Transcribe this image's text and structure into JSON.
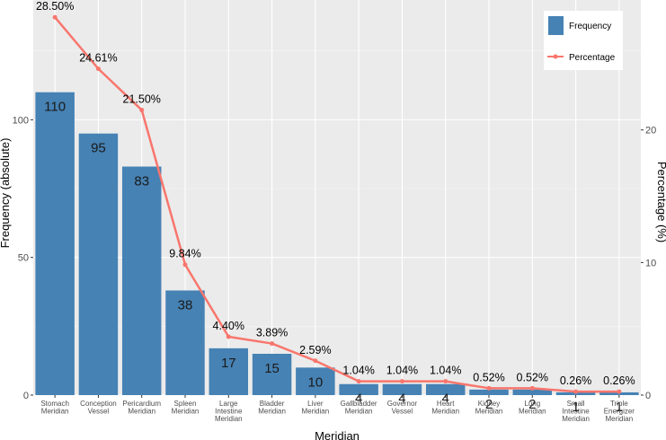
{
  "chart_data": {
    "type": "bar",
    "categories": [
      [
        "Stomach",
        "Meridian"
      ],
      [
        "Conception",
        "Vessel"
      ],
      [
        "Pericardium",
        "Meridian"
      ],
      [
        "Spleen",
        "Meridian"
      ],
      [
        "Large",
        "Intestine",
        "Meridian"
      ],
      [
        "Bladder",
        "Meridian"
      ],
      [
        "Liver",
        "Meridian"
      ],
      [
        "Gallbladder",
        "Meridian"
      ],
      [
        "Governor",
        "Vessel"
      ],
      [
        "Heart",
        "Meridian"
      ],
      [
        "Kidney",
        "Meridian"
      ],
      [
        "Lung",
        "Meridian"
      ],
      [
        "Small",
        "Intestine",
        "Meridian"
      ],
      [
        "Triple",
        "Energizer",
        "Meridian"
      ]
    ],
    "series": [
      {
        "name": "Frequency",
        "kind": "bar",
        "axis": "left",
        "color": "#4682b4",
        "values": [
          110,
          95,
          83,
          38,
          17,
          15,
          10,
          4,
          4,
          4,
          2,
          2,
          1,
          1
        ],
        "labels": [
          "110",
          "95",
          "83",
          "38",
          "17",
          "15",
          "10",
          "4",
          "4",
          "4",
          "2",
          "2",
          "1",
          "1"
        ]
      },
      {
        "name": "Percentage",
        "kind": "line",
        "axis": "right",
        "color": "#f8766d",
        "values": [
          28.5,
          24.61,
          21.5,
          9.84,
          4.4,
          3.89,
          2.59,
          1.04,
          1.04,
          1.04,
          0.52,
          0.52,
          0.26,
          0.26
        ],
        "labels": [
          "28.50%",
          "24.61%",
          "21.50%",
          "9.84%",
          "4.40%",
          "3.89%",
          "2.59%",
          "1.04%",
          "1.04%",
          "1.04%",
          "0.52%",
          "0.52%",
          "0.26%",
          "0.26%"
        ]
      }
    ],
    "xlabel": "Meridian",
    "ylabel": "Frequency (absolute)",
    "y2label": "Percentage (%)",
    "ylim": [
      0,
      143.5
    ],
    "y2lim": [
      0,
      29.8
    ],
    "yticks": [
      0,
      50,
      100
    ],
    "y2ticks": [
      0,
      10,
      20
    ],
    "grid": true,
    "legend_position": "top-right"
  }
}
